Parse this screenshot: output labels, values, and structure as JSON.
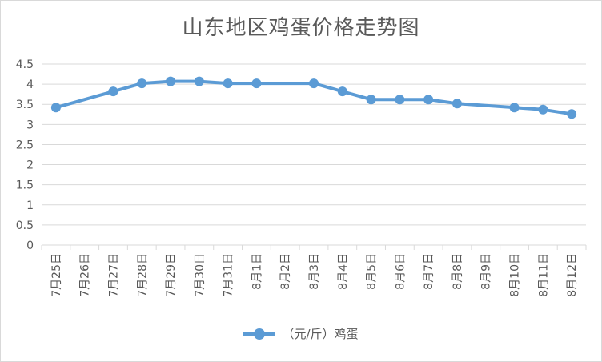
{
  "chart_data": {
    "type": "line",
    "title": "山东地区鸡蛋价格走势图",
    "categories": [
      "7月25日",
      "7月26日",
      "7月27日",
      "7月28日",
      "7月29日",
      "7月30日",
      "7月31日",
      "8月1日",
      "8月2日",
      "8月3日",
      "8月4日",
      "8月5日",
      "8月6日",
      "8月7日",
      "8月8日",
      "8月9日",
      "8月10日",
      "8月11日",
      "8月12日"
    ],
    "series": [
      {
        "name": "（元/斤）鸡蛋",
        "color": "#5b9bd5",
        "values": [
          3.42,
          null,
          3.82,
          4.02,
          4.07,
          4.07,
          4.02,
          4.02,
          null,
          4.02,
          3.82,
          3.62,
          3.62,
          3.62,
          3.52,
          null,
          3.42,
          3.37,
          3.26
        ]
      }
    ],
    "ylim": [
      0,
      4.5
    ],
    "yticks": [
      "0",
      "0.5",
      "1",
      "1.5",
      "2",
      "2.5",
      "3",
      "3.5",
      "4",
      "4.5"
    ],
    "grid": true,
    "legend_position": "bottom"
  }
}
